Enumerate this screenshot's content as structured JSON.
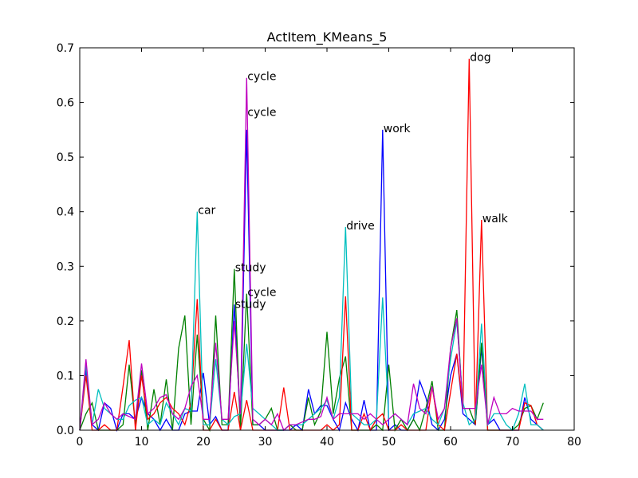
{
  "chart_data": {
    "type": "line",
    "title": "ActItem_KMeans_5",
    "xlabel": "",
    "ylabel": "",
    "xlim": [
      0,
      80
    ],
    "ylim": [
      0,
      0.7
    ],
    "xticks": [
      "0",
      "10",
      "20",
      "30",
      "40",
      "50",
      "60",
      "70",
      "80"
    ],
    "yticks": [
      "0.0",
      "0.1",
      "0.2",
      "0.3",
      "0.4",
      "0.5",
      "0.6",
      "0.7"
    ],
    "grid": false,
    "legend": "none",
    "x": [
      0,
      1,
      2,
      3,
      4,
      5,
      6,
      7,
      8,
      9,
      10,
      11,
      12,
      13,
      14,
      15,
      16,
      17,
      18,
      19,
      20,
      21,
      22,
      23,
      24,
      25,
      26,
      27,
      28,
      29,
      30,
      31,
      32,
      33,
      34,
      35,
      36,
      37,
      38,
      39,
      40,
      41,
      42,
      43,
      44,
      45,
      46,
      47,
      48,
      49,
      50,
      51,
      52,
      53,
      54,
      55,
      56,
      57,
      58,
      59,
      60,
      61,
      62,
      63,
      64,
      65,
      66,
      67,
      68,
      69,
      70,
      71,
      72,
      73,
      74,
      75
    ],
    "series": [
      {
        "color": "#0000ff",
        "values": [
          0,
          0.11,
          0.01,
          0,
          0.05,
          0.04,
          0,
          0.03,
          0.03,
          0.02,
          0.06,
          0.03,
          0.02,
          0,
          0.02,
          0,
          0,
          0.03,
          0.035,
          0.035,
          0.105,
          0.01,
          0.025,
          0,
          0,
          0.23,
          0.01,
          0.55,
          0.01,
          0.01,
          0,
          0,
          0,
          0,
          0,
          0.01,
          0,
          0.075,
          0.03,
          0.045,
          0.045,
          0.02,
          0,
          0.05,
          0.02,
          0,
          0.055,
          0,
          0,
          0.55,
          0,
          0.01,
          0,
          0,
          0.02,
          0.09,
          0.06,
          0.01,
          0,
          0.02,
          0.1,
          0.14,
          0.03,
          0.02,
          0.01,
          0.15,
          0.01,
          0.02,
          0,
          0,
          0,
          0,
          0.06,
          0.02,
          0.01,
          0
        ],
        "labels": [
          {
            "x": 49,
            "y": 0.55,
            "text": "work"
          },
          {
            "x": 27,
            "y": 0.58,
            "text": "cycle"
          }
        ]
      },
      {
        "color": "#008000",
        "values": [
          0,
          0.03,
          0.05,
          0,
          0,
          0,
          0,
          0.01,
          0.12,
          0.01,
          0.11,
          0,
          0.075,
          0.01,
          0.093,
          0,
          0.15,
          0.21,
          0.01,
          0.175,
          0.02,
          0,
          0.21,
          0.01,
          0.01,
          0.295,
          0,
          0.25,
          0.01,
          0.01,
          0.02,
          0.04,
          0,
          0,
          0.01,
          0,
          0,
          0.06,
          0.01,
          0.035,
          0.18,
          0.03,
          0.095,
          0.135,
          0,
          0,
          0,
          0,
          0.01,
          0,
          0.12,
          0,
          0.02,
          0,
          0.02,
          0,
          0.04,
          0.09,
          0,
          0,
          0.15,
          0.22,
          0.04,
          0.04,
          0.01,
          0.16,
          0,
          0,
          0,
          0,
          0,
          0.01,
          0.04,
          0.045,
          0.02,
          0.05
        ],
        "labels": [
          {
            "x": 25,
            "y": 0.295,
            "text": "study"
          },
          {
            "x": 27,
            "y": 0.25,
            "text": "cycle"
          }
        ]
      },
      {
        "color": "#ff0000",
        "values": [
          0,
          0.1,
          0,
          0,
          0.01,
          0,
          0,
          0.08,
          0.165,
          0,
          0.1,
          0.02,
          0.03,
          0.05,
          0.06,
          0.04,
          0.03,
          0.01,
          0.05,
          0.24,
          0,
          0,
          0.02,
          0,
          0,
          0.07,
          0,
          0.055,
          0,
          0,
          0,
          0,
          0,
          0.078,
          0,
          0,
          0,
          0,
          0,
          0,
          0.01,
          0,
          0.01,
          0.245,
          0,
          0,
          0.03,
          0,
          0.02,
          0.03,
          0,
          0,
          0.01,
          0,
          0,
          0,
          0,
          0.08,
          0.01,
          0,
          0.07,
          0.14,
          0.04,
          0.68,
          0.01,
          0.385,
          0,
          0,
          0,
          0,
          0,
          0,
          0.05,
          0.045,
          0.01,
          0
        ],
        "labels": [
          {
            "x": 63,
            "y": 0.68,
            "text": "dog"
          },
          {
            "x": 65,
            "y": 0.385,
            "text": "walk"
          }
        ]
      },
      {
        "color": "#00bfbf",
        "values": [
          0,
          0.12,
          0.01,
          0.075,
          0.04,
          0.03,
          0.02,
          0.02,
          0.045,
          0.055,
          0.06,
          0.01,
          0.02,
          0.01,
          0.05,
          0.03,
          0.01,
          0.04,
          0.035,
          0.4,
          0.01,
          0.01,
          0.13,
          0.02,
          0.01,
          0.025,
          0.03,
          0.158,
          0.04,
          0.03,
          0.02,
          0.01,
          0,
          0,
          0.01,
          0.01,
          0.01,
          0.02,
          0.03,
          0.04,
          0.055,
          0.02,
          0.06,
          0.372,
          0.03,
          0.02,
          0.01,
          0.01,
          0.02,
          0.243,
          0.02,
          0.03,
          0.02,
          0.01,
          0.03,
          0.035,
          0.04,
          0.02,
          0.01,
          0.04,
          0.13,
          0.2,
          0.05,
          0.01,
          0.02,
          0.195,
          0.01,
          0.03,
          0.03,
          0.01,
          0,
          0.03,
          0.085,
          0.01,
          0.01,
          0
        ],
        "labels": [
          {
            "x": 19,
            "y": 0.4,
            "text": "car"
          },
          {
            "x": 43,
            "y": 0.372,
            "text": "drive"
          }
        ]
      },
      {
        "color": "#bf00bf",
        "values": [
          0,
          0.13,
          0.01,
          0.02,
          0.05,
          0.03,
          0.02,
          0.03,
          0.025,
          0.02,
          0.122,
          0.03,
          0.04,
          0.06,
          0.065,
          0.03,
          0.02,
          0.04,
          0.08,
          0.1,
          0.02,
          0.02,
          0.16,
          0.02,
          0.02,
          0.2,
          0.03,
          0.645,
          0.02,
          0.01,
          0.02,
          0.01,
          0.03,
          0,
          0.01,
          0.01,
          0.015,
          0.02,
          0.02,
          0.025,
          0.06,
          0.02,
          0.03,
          0.03,
          0.03,
          0.03,
          0.02,
          0.03,
          0.02,
          0.01,
          0.02,
          0.03,
          0.02,
          0.01,
          0.085,
          0.04,
          0.03,
          0.08,
          0.02,
          0.04,
          0.15,
          0.205,
          0.04,
          0.04,
          0.04,
          0.12,
          0.01,
          0.06,
          0.03,
          0.03,
          0.04,
          0.035,
          0.035,
          0.035,
          0.02,
          0.02
        ],
        "labels": [
          {
            "x": 27,
            "y": 0.645,
            "text": "cycle"
          },
          {
            "x": 25,
            "y": 0.228,
            "text": "study"
          }
        ]
      }
    ]
  }
}
